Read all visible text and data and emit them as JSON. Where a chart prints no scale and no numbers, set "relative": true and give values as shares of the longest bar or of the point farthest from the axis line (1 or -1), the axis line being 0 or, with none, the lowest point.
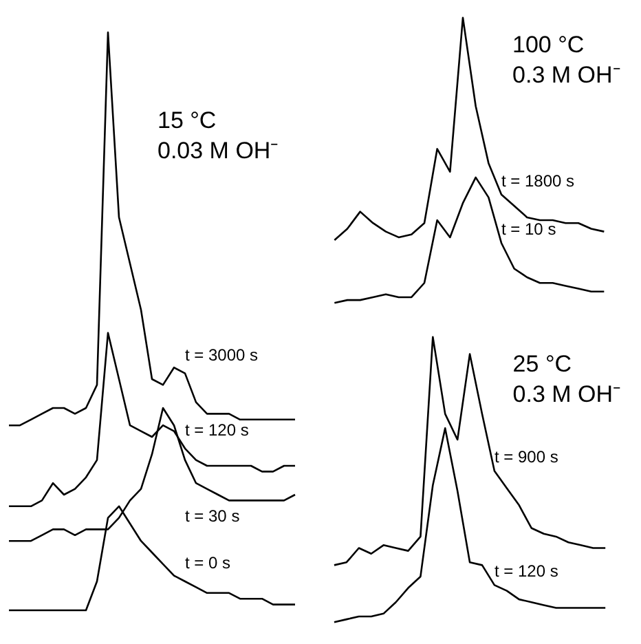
{
  "chart_data": [
    {
      "type": "line",
      "title": "15 °C\n0.03 M OH⁻",
      "relative": true,
      "categories": [
        null,
        null,
        null,
        null,
        null,
        null,
        null,
        null,
        null,
        null,
        null,
        null,
        null,
        null,
        null,
        null,
        null,
        null,
        null,
        null,
        null,
        null,
        null,
        null,
        null,
        null,
        null
      ],
      "series": [
        {
          "name": "t = 3000 s",
          "color": "#000000",
          "values": [
            0.32,
            0.32,
            0.33,
            0.34,
            0.35,
            0.35,
            0.34,
            0.35,
            0.39,
            1.0,
            0.68,
            0.6,
            0.52,
            0.4,
            0.39,
            0.42,
            0.41,
            0.36,
            0.34,
            0.34,
            0.34,
            0.33,
            0.33,
            0.33,
            0.33,
            0.33,
            0.33
          ]
        },
        {
          "name": "t = 120 s",
          "color": "#000000",
          "values": [
            0.18,
            0.18,
            0.18,
            0.19,
            0.22,
            0.2,
            0.21,
            0.23,
            0.26,
            0.48,
            0.4,
            0.32,
            0.31,
            0.3,
            0.32,
            0.31,
            0.28,
            0.26,
            0.25,
            0.25,
            0.25,
            0.25,
            0.25,
            0.24,
            0.24,
            0.25,
            0.25
          ]
        },
        {
          "name": "t = 30 s",
          "color": "#000000",
          "values": [
            0.12,
            0.12,
            0.12,
            0.13,
            0.14,
            0.14,
            0.13,
            0.14,
            0.14,
            0.14,
            0.16,
            0.19,
            0.21,
            0.27,
            0.35,
            0.32,
            0.26,
            0.22,
            0.21,
            0.2,
            0.19,
            0.19,
            0.19,
            0.19,
            0.19,
            0.19,
            0.2
          ]
        },
        {
          "name": "t = 0 s",
          "color": "#000000",
          "values": [
            0.0,
            0.0,
            0.0,
            0.0,
            0.0,
            0.0,
            0.0,
            0.0,
            0.05,
            0.16,
            0.18,
            0.15,
            0.12,
            0.1,
            0.08,
            0.06,
            0.05,
            0.04,
            0.03,
            0.03,
            0.03,
            0.02,
            0.02,
            0.02,
            0.01,
            0.01,
            0.01
          ]
        }
      ]
    },
    {
      "type": "line",
      "title": "100 °C\n0.3 M OH⁻",
      "relative": true,
      "categories": [
        null,
        null,
        null,
        null,
        null,
        null,
        null,
        null,
        null,
        null,
        null,
        null,
        null,
        null,
        null,
        null,
        null,
        null,
        null,
        null,
        null,
        null
      ],
      "series": [
        {
          "name": "t = 1800 s",
          "color": "#000000",
          "values": [
            0.22,
            0.26,
            0.32,
            0.28,
            0.25,
            0.23,
            0.24,
            0.28,
            0.54,
            0.46,
            1.0,
            0.69,
            0.49,
            0.38,
            0.34,
            0.3,
            0.29,
            0.29,
            0.28,
            0.28,
            0.26,
            0.25
          ]
        },
        {
          "name": "t = 10 s",
          "color": "#000000",
          "values": [
            0.0,
            0.01,
            0.01,
            0.02,
            0.03,
            0.02,
            0.02,
            0.07,
            0.29,
            0.23,
            0.35,
            0.44,
            0.37,
            0.21,
            0.12,
            0.09,
            0.07,
            0.07,
            0.06,
            0.05,
            0.04,
            0.04
          ]
        }
      ]
    },
    {
      "type": "line",
      "title": "25 °C\n0.3 M OH⁻",
      "relative": true,
      "categories": [
        null,
        null,
        null,
        null,
        null,
        null,
        null,
        null,
        null,
        null,
        null,
        null,
        null,
        null,
        null,
        null,
        null,
        null,
        null,
        null,
        null,
        null,
        null
      ],
      "series": [
        {
          "name": "t = 900 s",
          "color": "#000000",
          "values": [
            0.2,
            0.21,
            0.26,
            0.24,
            0.27,
            0.26,
            0.25,
            0.3,
            1.0,
            0.73,
            0.64,
            0.94,
            0.73,
            0.53,
            0.47,
            0.41,
            0.33,
            0.31,
            0.3,
            0.28,
            0.27,
            0.26,
            0.26
          ]
        },
        {
          "name": "t = 120 s",
          "color": "#000000",
          "values": [
            0.0,
            0.01,
            0.02,
            0.02,
            0.03,
            0.07,
            0.12,
            0.16,
            0.48,
            0.68,
            0.46,
            0.21,
            0.2,
            0.13,
            0.11,
            0.08,
            0.07,
            0.06,
            0.05,
            0.05,
            0.05,
            0.05,
            0.05
          ]
        }
      ]
    }
  ]
}
